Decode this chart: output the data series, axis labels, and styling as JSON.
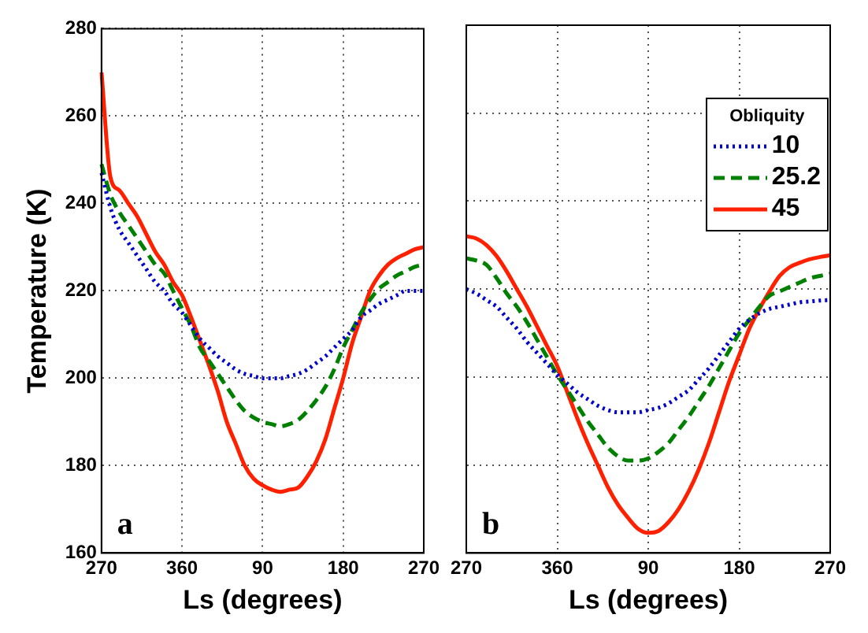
{
  "chart_data": [
    {
      "type": "line",
      "xlabel": "Ls (degrees)",
      "ylabel": "Temperature (K)",
      "annotations": [
        "a"
      ],
      "categories": [
        "270",
        null,
        null,
        null,
        null,
        null,
        null,
        null,
        null,
        "360",
        null,
        null,
        null,
        null,
        null,
        null,
        null,
        null,
        "90",
        null,
        null,
        null,
        null,
        null,
        null,
        null,
        null,
        "180",
        null,
        null,
        null,
        null,
        null,
        null,
        null,
        null,
        "270"
      ],
      "ylim": [
        160,
        280
      ],
      "yticks": [
        160,
        180,
        200,
        220,
        240,
        260,
        280
      ],
      "grid": true,
      "series": [
        {
          "color": "#0000cc",
          "line_style": "dotted",
          "values": [
            247,
            239,
            234,
            231,
            228,
            225,
            222,
            220,
            217,
            215,
            212,
            209,
            207,
            205,
            203.5,
            202,
            201,
            200.5,
            200,
            200,
            200,
            200.5,
            201,
            202,
            203.5,
            205,
            207,
            209,
            211,
            214,
            215.5,
            217,
            218,
            219,
            220,
            220,
            220
          ]
        },
        {
          "color": "#008000",
          "line_style": "dashed",
          "values": [
            249,
            242,
            238,
            235,
            232,
            229,
            226,
            224,
            220,
            216,
            212,
            207,
            204,
            201,
            198,
            195,
            192.5,
            191,
            190,
            189.5,
            189,
            189.5,
            190.5,
            192.5,
            195,
            198,
            202,
            207,
            211,
            215,
            218,
            220.5,
            222,
            223.5,
            224.5,
            225.5,
            226
          ]
        },
        {
          "color": "#ff2000",
          "line_style": "solid",
          "values": [
            270,
            246,
            243,
            240,
            237,
            233,
            229,
            226,
            222,
            219,
            214,
            208.5,
            203,
            197,
            190,
            185,
            180,
            177,
            175.5,
            174.5,
            174,
            174.5,
            175,
            177.5,
            181,
            186,
            193,
            200,
            208,
            214,
            220,
            223.5,
            226,
            227.5,
            228.5,
            229.5,
            230
          ]
        }
      ]
    },
    {
      "type": "line",
      "xlabel": "Ls (degrees)",
      "annotations": [
        "b"
      ],
      "legend_title": "Obliquity",
      "legend": "top right",
      "tick_labels": "x",
      "categories": [
        "270",
        null,
        null,
        null,
        null,
        null,
        null,
        null,
        null,
        "360",
        null,
        null,
        null,
        null,
        null,
        null,
        null,
        null,
        "90",
        null,
        null,
        null,
        null,
        null,
        null,
        null,
        null,
        "180",
        null,
        null,
        null,
        null,
        null,
        null,
        null,
        null,
        "270"
      ],
      "ylim": [
        160,
        280
      ],
      "yticks": [
        160,
        180,
        200,
        220,
        240,
        260,
        280
      ],
      "grid": true,
      "series": [
        {
          "name": "10",
          "color": "#0000cc",
          "line_style": "dotted",
          "values": [
            220,
            219,
            217.5,
            216,
            213.5,
            211,
            208,
            205.5,
            203,
            200.5,
            198.5,
            196.5,
            195,
            193.5,
            192.5,
            192,
            192,
            192,
            192.5,
            193,
            194,
            195.5,
            197,
            199.5,
            202,
            205,
            208,
            211,
            213,
            214.5,
            215.5,
            216,
            216.5,
            217,
            217.2,
            217.4,
            217.5
          ]
        },
        {
          "name": "25.2",
          "color": "#008000",
          "line_style": "dashed",
          "values": [
            227,
            226.5,
            225.5,
            222.5,
            219,
            216,
            212.5,
            208.5,
            204.5,
            200.5,
            197,
            193.5,
            190,
            187,
            184,
            182,
            181,
            181,
            181.5,
            183,
            185,
            188,
            191,
            194.5,
            198,
            202,
            206,
            210,
            213,
            216,
            218.5,
            219.5,
            220.5,
            221.5,
            222.5,
            223,
            223.5
          ]
        },
        {
          "name": "45",
          "color": "#ff2000",
          "line_style": "solid",
          "values": [
            232,
            231.5,
            230,
            227.5,
            224,
            220,
            216,
            211.5,
            207,
            202.5,
            196.5,
            190.5,
            185,
            180,
            175,
            171,
            168,
            165.5,
            164.6,
            165,
            167,
            170,
            174,
            179,
            185,
            192,
            199,
            205,
            211,
            215.5,
            219.5,
            223,
            225,
            226,
            226.8,
            227.3,
            227.7
          ]
        }
      ]
    }
  ]
}
